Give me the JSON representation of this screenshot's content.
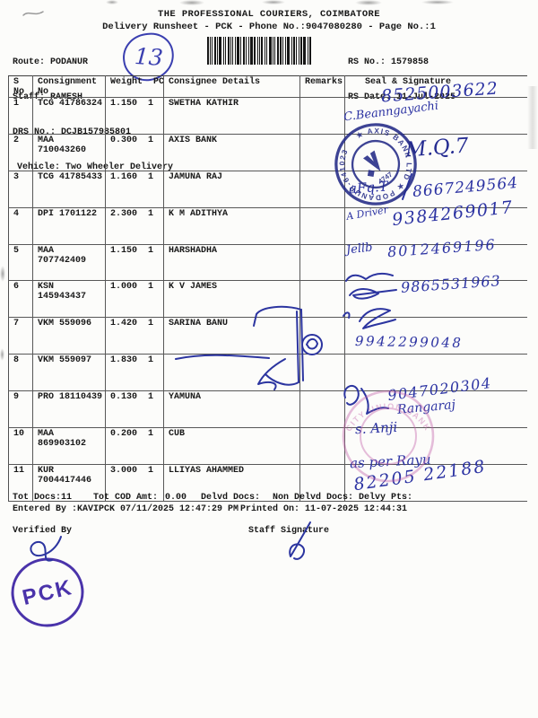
{
  "doc": {
    "title": "THE PROFESSIONAL COURIERS, COIMBATORE",
    "subtitle": "Delivery Runsheet - PCK - Phone No.:9047080280 - Page No.:1"
  },
  "meta": {
    "route_label": "Route:",
    "route_value": "PODANUR",
    "staff_label": "Staff:",
    "staff_value": "RAMESH",
    "drs_label": "DRS No.:",
    "drs_value": "DCJB157985801",
    "vehicle_label": "Vehicle:",
    "vehicle_value": "Two Wheeler Delivery",
    "rs_no_label": "RS No.:",
    "rs_no_value": "1579858",
    "rs_date_label": "RS Date:",
    "rs_date_value": "11-Jul-2025",
    "barcode_icon": "barcode"
  },
  "table": {
    "headers": {
      "s_no": "S No",
      "consignment": "Consignment No",
      "weight": "Weight",
      "pcs": "PCS",
      "consignee": "Consignee Details",
      "remarks": "Remarks",
      "seal": "Seal & Signature"
    },
    "rows": [
      {
        "s_no": "1",
        "consignment_no": "TCG 41786324",
        "weight": "1.150",
        "pcs": "1",
        "consignee": "SWETHA KATHIR",
        "remarks": ""
      },
      {
        "s_no": "2",
        "consignment_no": "MAA 710043260",
        "weight": "0.300",
        "pcs": "1",
        "consignee": "AXIS BANK",
        "remarks": ""
      },
      {
        "s_no": "3",
        "consignment_no": "TCG 41785433",
        "weight": "1.160",
        "pcs": "1",
        "consignee": "JAMUNA RAJ",
        "remarks": ""
      },
      {
        "s_no": "4",
        "consignment_no": "DPI 1701122",
        "weight": "2.300",
        "pcs": "1",
        "consignee": "K M ADITHYA",
        "remarks": ""
      },
      {
        "s_no": "5",
        "consignment_no": "MAA 707742409",
        "weight": "1.150",
        "pcs": "1",
        "consignee": "HARSHADHA",
        "remarks": ""
      },
      {
        "s_no": "6",
        "consignment_no": "KSN 145943437",
        "weight": "1.000",
        "pcs": "1",
        "consignee": "K V JAMES",
        "remarks": ""
      },
      {
        "s_no": "7",
        "consignment_no": "VKM 559096",
        "weight": "1.420",
        "pcs": "1",
        "consignee": "SARINA BANU",
        "remarks": ""
      },
      {
        "s_no": "8",
        "consignment_no": "VKM 559097",
        "weight": "1.830",
        "pcs": "1",
        "consignee": "",
        "remarks": ""
      },
      {
        "s_no": "9",
        "consignment_no": "PRO 18110439",
        "weight": "0.130",
        "pcs": "1",
        "consignee": "YAMUNA",
        "remarks": ""
      },
      {
        "s_no": "10",
        "consignment_no": "MAA 869903102",
        "weight": "0.200",
        "pcs": "1",
        "consignee": "CUB",
        "remarks": ""
      },
      {
        "s_no": "11",
        "consignment_no": "KUR 7004417446",
        "weight": "3.000",
        "pcs": "1",
        "consignee": "LLIYAS AHAMMED",
        "remarks": ""
      }
    ]
  },
  "handwriting": {
    "page_mark": "13",
    "r1_phone": "8525003622",
    "r1_sig": "C.Beanngayachi",
    "r2_sig": "M.Q.7",
    "r3_sig": "aFq.T",
    "r3_phone": "8667249564",
    "r4_note": "A Driver",
    "r4_phone": "9384269017",
    "r5_sig": "Jellb",
    "r5_phone": "8012469196",
    "r6_phone": "9865531963",
    "r7_phone": "9942299048",
    "r9_phone": "9047020304",
    "r9_name": "Rangaraj",
    "r10_sig": "s. Anji",
    "r11_note": "as per Rayu",
    "r11_phone": "82205 22188"
  },
  "stamps": {
    "axis_ring_text": "★ AXIS BANK LTD ★ PODANUR-641023",
    "axis_center": "4747",
    "cub_ring_text": "CITY UNION BANK",
    "pck_text": "PCK"
  },
  "footer": {
    "tot_docs_label": "Tot Docs:",
    "tot_docs_value": "11",
    "tot_cod_label": "Tot COD Amt:",
    "tot_cod_value": "0.00",
    "delvd_label": "Delvd Docs:",
    "non_delvd_label": "Non Delvd Docs:",
    "delvy_pts_label": "Delvy Pts:",
    "entered_by": "Entered By :KAVIPCK 07/11/2025 12:47:29 PM",
    "printed_on": "Printed On: 11-07-2025 12:44:31",
    "verified_by_label": "Verified By",
    "staff_signature_label": "Staff Signature"
  }
}
